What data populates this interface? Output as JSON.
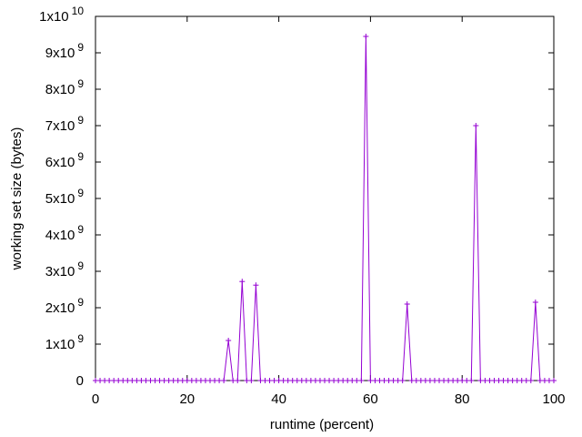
{
  "chart_data": {
    "type": "line",
    "xlabel": "runtime (percent)",
    "ylabel": "working set size (bytes)",
    "xlim": [
      0,
      100
    ],
    "ylim": [
      0,
      10000000000
    ],
    "grid": false,
    "legend": "none",
    "x_ticks": [
      {
        "value": 0,
        "label": "0"
      },
      {
        "value": 20,
        "label": "20"
      },
      {
        "value": 40,
        "label": "40"
      },
      {
        "value": 60,
        "label": "60"
      },
      {
        "value": 80,
        "label": "80"
      },
      {
        "value": 100,
        "label": "100"
      }
    ],
    "y_ticks": [
      {
        "value": 0,
        "mantissa": "0",
        "exponent": ""
      },
      {
        "value": 1000000000,
        "mantissa": "1x10",
        "exponent": "9"
      },
      {
        "value": 2000000000,
        "mantissa": "2x10",
        "exponent": "9"
      },
      {
        "value": 3000000000,
        "mantissa": "3x10",
        "exponent": "9"
      },
      {
        "value": 4000000000,
        "mantissa": "4x10",
        "exponent": "9"
      },
      {
        "value": 5000000000,
        "mantissa": "5x10",
        "exponent": "9"
      },
      {
        "value": 6000000000,
        "mantissa": "6x10",
        "exponent": "9"
      },
      {
        "value": 7000000000,
        "mantissa": "7x10",
        "exponent": "9"
      },
      {
        "value": 8000000000,
        "mantissa": "8x10",
        "exponent": "9"
      },
      {
        "value": 9000000000,
        "mantissa": "9x10",
        "exponent": "9"
      },
      {
        "value": 10000000000,
        "mantissa": "1x10",
        "exponent": "10"
      }
    ],
    "series": [
      {
        "color": "#9400d3",
        "marker": "+",
        "x": [
          0,
          1,
          2,
          3,
          4,
          5,
          6,
          7,
          8,
          9,
          10,
          11,
          12,
          13,
          14,
          15,
          16,
          17,
          18,
          19,
          20,
          21,
          22,
          23,
          24,
          25,
          26,
          27,
          28,
          29,
          30,
          31,
          32,
          33,
          34,
          35,
          36,
          37,
          38,
          39,
          40,
          41,
          42,
          43,
          44,
          45,
          46,
          47,
          48,
          49,
          50,
          51,
          52,
          53,
          54,
          55,
          56,
          57,
          58,
          59,
          60,
          61,
          62,
          63,
          64,
          65,
          66,
          67,
          68,
          69,
          70,
          71,
          72,
          73,
          74,
          75,
          76,
          77,
          78,
          79,
          80,
          81,
          82,
          83,
          84,
          85,
          86,
          87,
          88,
          89,
          90,
          91,
          92,
          93,
          94,
          95,
          96,
          97,
          98,
          99,
          100
        ],
        "y": [
          0,
          0,
          0,
          0,
          0,
          0,
          0,
          0,
          0,
          0,
          0,
          0,
          0,
          0,
          0,
          0,
          0,
          0,
          0,
          0,
          0,
          0,
          0,
          0,
          0,
          0,
          0,
          0,
          0,
          1100000000,
          0,
          0,
          2720000000,
          0,
          0,
          2620000000,
          0,
          0,
          0,
          0,
          0,
          0,
          0,
          0,
          0,
          0,
          0,
          0,
          0,
          0,
          0,
          0,
          0,
          0,
          0,
          0,
          0,
          0,
          0,
          9450000000,
          0,
          0,
          0,
          0,
          0,
          0,
          0,
          0,
          2100000000,
          0,
          0,
          0,
          0,
          0,
          0,
          0,
          0,
          0,
          0,
          0,
          0,
          0,
          0,
          7000000000,
          0,
          0,
          0,
          0,
          0,
          0,
          0,
          0,
          0,
          0,
          0,
          0,
          2150000000,
          0,
          0,
          0,
          0
        ]
      }
    ]
  }
}
